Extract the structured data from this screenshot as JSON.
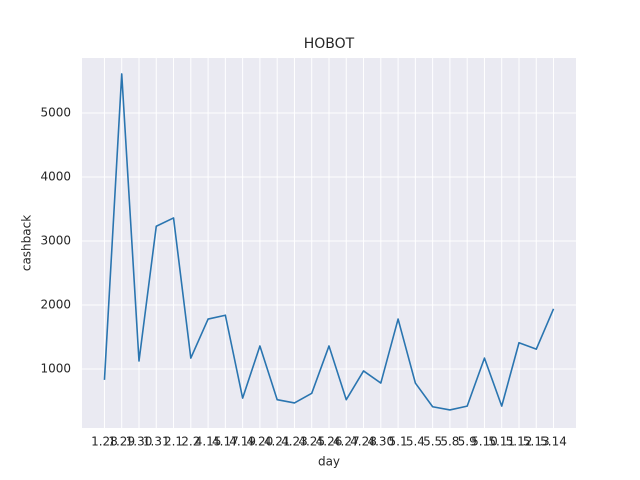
{
  "chart_data": {
    "type": "line",
    "title": "HOBOT",
    "x_label": "day",
    "y_label": "cashback",
    "categories": [
      "1.28",
      "1.29",
      "1.30",
      "1.31",
      "2.1",
      "2.2",
      "4.15",
      "4.17",
      "4.19",
      "4.20",
      "4.21",
      "4.23",
      "4.25",
      "4.26",
      "4.27",
      "4.28",
      "4.30",
      "5.1",
      "5.4",
      "5.5",
      "5.8",
      "5.9",
      "5.10",
      "5.11",
      "5.12",
      "5.13",
      "5.14"
    ],
    "series": [
      {
        "name": "cashback",
        "color": "#2a75b0",
        "values": [
          830,
          5610,
          1125,
          3230,
          3360,
          1170,
          1780,
          1840,
          545,
          1360,
          520,
          470,
          620,
          1360,
          520,
          970,
          780,
          1780,
          780,
          410,
          360,
          420,
          1170,
          420,
          1410,
          1310,
          1940
        ]
      }
    ],
    "ylim": [
      78,
      5859
    ],
    "yticks": [
      1000,
      2000,
      3000,
      4000,
      5000
    ],
    "grid": true
  }
}
